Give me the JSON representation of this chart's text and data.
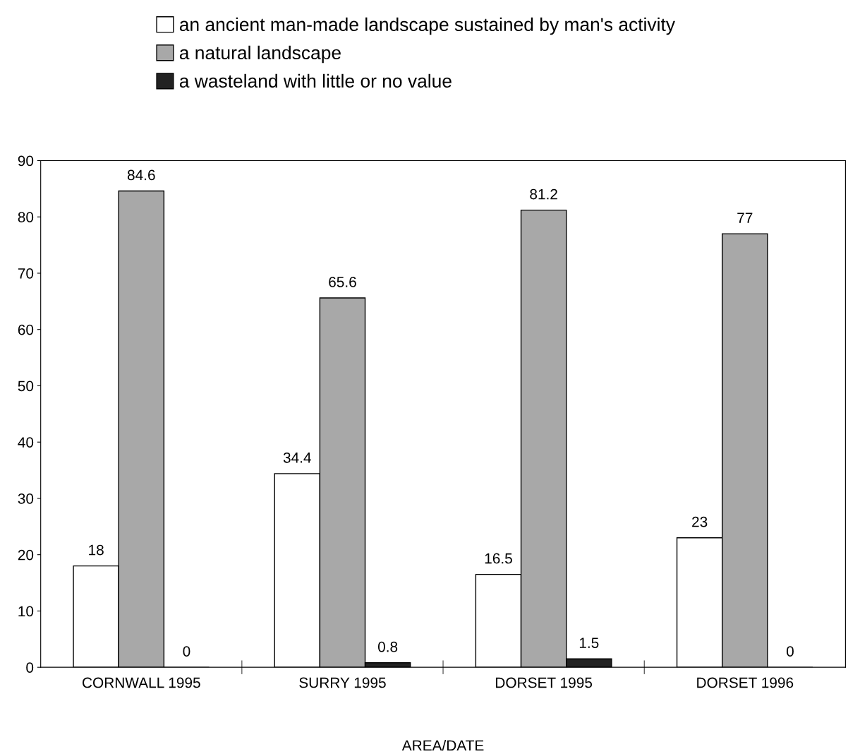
{
  "chart_data": {
    "type": "bar",
    "xlabel": "AREA/DATE",
    "categories": [
      "CORNWALL 1995",
      "SURRY 1995",
      "DORSET 1995",
      "DORSET 1996"
    ],
    "series": [
      {
        "name": "an ancient man-made landscape sustained by man's activity",
        "color": "#ffffff",
        "values": [
          18,
          34.4,
          16.5,
          23
        ]
      },
      {
        "name": "a natural landscape",
        "color": "#a8a8a8",
        "values": [
          84.6,
          65.6,
          81.2,
          77
        ]
      },
      {
        "name": "a wasteland with little or no value",
        "color": "#222222",
        "values": [
          0,
          0.8,
          1.5,
          0
        ]
      }
    ],
    "ylim": [
      0,
      90
    ],
    "yticks": [
      0,
      10,
      20,
      30,
      40,
      50,
      60,
      70,
      80,
      90
    ],
    "data_labels": true,
    "legend": "top",
    "grid": false
  }
}
